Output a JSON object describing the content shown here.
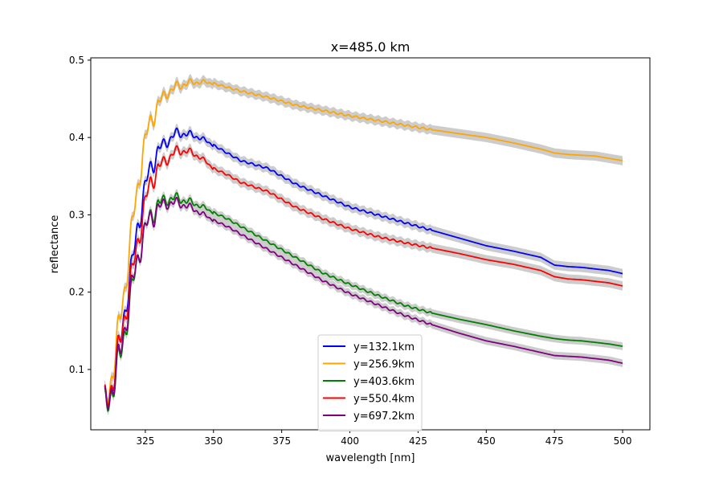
{
  "chart_data": {
    "type": "line",
    "title": "x=485.0 km",
    "xlabel": "wavelength [nm]",
    "ylabel": "reflectance",
    "xlim": [
      305,
      510
    ],
    "ylim": [
      0.022,
      0.503
    ],
    "xticks": [
      325,
      350,
      375,
      400,
      425,
      450,
      475,
      500
    ],
    "yticks": [
      0.1,
      0.2,
      0.3,
      0.4,
      0.5
    ],
    "grid": false,
    "legend_position": "lower-center",
    "uncertainty_band_color": "#cccccc",
    "series": [
      {
        "name": "y=132.1km",
        "color": "#0000ff",
        "band": 0.006,
        "points": [
          [
            310,
            0.05
          ],
          [
            312,
            0.07
          ],
          [
            314,
            0.1
          ],
          [
            316,
            0.14
          ],
          [
            318,
            0.19
          ],
          [
            320,
            0.23
          ],
          [
            322,
            0.28
          ],
          [
            324,
            0.32
          ],
          [
            326,
            0.35
          ],
          [
            328,
            0.37
          ],
          [
            330,
            0.385
          ],
          [
            333,
            0.395
          ],
          [
            336,
            0.405
          ],
          [
            340,
            0.405
          ],
          [
            345,
            0.4
          ],
          [
            350,
            0.39
          ],
          [
            355,
            0.38
          ],
          [
            360,
            0.37
          ],
          [
            370,
            0.36
          ],
          [
            380,
            0.34
          ],
          [
            390,
            0.325
          ],
          [
            400,
            0.31
          ],
          [
            410,
            0.3
          ],
          [
            420,
            0.29
          ],
          [
            430,
            0.28
          ],
          [
            440,
            0.27
          ],
          [
            450,
            0.26
          ],
          [
            460,
            0.253
          ],
          [
            470,
            0.245
          ],
          [
            475,
            0.235
          ],
          [
            480,
            0.233
          ],
          [
            485,
            0.232
          ],
          [
            490,
            0.23
          ],
          [
            495,
            0.228
          ],
          [
            500,
            0.224
          ]
        ]
      },
      {
        "name": "y=256.9km",
        "color": "#ffa500",
        "band": 0.006,
        "points": [
          [
            310,
            0.05
          ],
          [
            312,
            0.08
          ],
          [
            314,
            0.12
          ],
          [
            316,
            0.17
          ],
          [
            318,
            0.22
          ],
          [
            320,
            0.28
          ],
          [
            322,
            0.33
          ],
          [
            324,
            0.38
          ],
          [
            326,
            0.41
          ],
          [
            328,
            0.43
          ],
          [
            330,
            0.445
          ],
          [
            333,
            0.458
          ],
          [
            336,
            0.465
          ],
          [
            340,
            0.47
          ],
          [
            345,
            0.472
          ],
          [
            350,
            0.47
          ],
          [
            355,
            0.465
          ],
          [
            360,
            0.46
          ],
          [
            370,
            0.452
          ],
          [
            380,
            0.442
          ],
          [
            390,
            0.435
          ],
          [
            400,
            0.428
          ],
          [
            410,
            0.422
          ],
          [
            420,
            0.416
          ],
          [
            430,
            0.41
          ],
          [
            440,
            0.405
          ],
          [
            450,
            0.4
          ],
          [
            460,
            0.393
          ],
          [
            470,
            0.385
          ],
          [
            475,
            0.38
          ],
          [
            480,
            0.378
          ],
          [
            485,
            0.377
          ],
          [
            490,
            0.376
          ],
          [
            495,
            0.373
          ],
          [
            500,
            0.37
          ]
        ]
      },
      {
        "name": "y=403.6km",
        "color": "#008000",
        "band": 0.005,
        "points": [
          [
            310,
            0.048
          ],
          [
            312,
            0.065
          ],
          [
            314,
            0.09
          ],
          [
            316,
            0.12
          ],
          [
            318,
            0.16
          ],
          [
            320,
            0.2
          ],
          [
            322,
            0.24
          ],
          [
            324,
            0.27
          ],
          [
            326,
            0.29
          ],
          [
            328,
            0.305
          ],
          [
            330,
            0.315
          ],
          [
            333,
            0.32
          ],
          [
            336,
            0.322
          ],
          [
            340,
            0.318
          ],
          [
            345,
            0.312
          ],
          [
            350,
            0.303
          ],
          [
            355,
            0.295
          ],
          [
            360,
            0.285
          ],
          [
            370,
            0.265
          ],
          [
            380,
            0.245
          ],
          [
            390,
            0.225
          ],
          [
            400,
            0.21
          ],
          [
            410,
            0.196
          ],
          [
            420,
            0.183
          ],
          [
            430,
            0.173
          ],
          [
            440,
            0.165
          ],
          [
            450,
            0.158
          ],
          [
            460,
            0.15
          ],
          [
            470,
            0.143
          ],
          [
            475,
            0.14
          ],
          [
            480,
            0.138
          ],
          [
            485,
            0.137
          ],
          [
            490,
            0.135
          ],
          [
            495,
            0.133
          ],
          [
            500,
            0.13
          ]
        ]
      },
      {
        "name": "y=550.4km",
        "color": "#ff0000",
        "band": 0.006,
        "points": [
          [
            310,
            0.052
          ],
          [
            312,
            0.072
          ],
          [
            314,
            0.1
          ],
          [
            316,
            0.14
          ],
          [
            318,
            0.18
          ],
          [
            320,
            0.22
          ],
          [
            322,
            0.26
          ],
          [
            324,
            0.3
          ],
          [
            326,
            0.33
          ],
          [
            328,
            0.35
          ],
          [
            330,
            0.362
          ],
          [
            333,
            0.372
          ],
          [
            336,
            0.382
          ],
          [
            340,
            0.383
          ],
          [
            345,
            0.375
          ],
          [
            350,
            0.36
          ],
          [
            355,
            0.352
          ],
          [
            360,
            0.342
          ],
          [
            370,
            0.33
          ],
          [
            380,
            0.31
          ],
          [
            390,
            0.295
          ],
          [
            400,
            0.282
          ],
          [
            410,
            0.272
          ],
          [
            420,
            0.264
          ],
          [
            430,
            0.257
          ],
          [
            440,
            0.25
          ],
          [
            450,
            0.242
          ],
          [
            460,
            0.236
          ],
          [
            470,
            0.228
          ],
          [
            475,
            0.22
          ],
          [
            480,
            0.217
          ],
          [
            485,
            0.216
          ],
          [
            490,
            0.214
          ],
          [
            495,
            0.212
          ],
          [
            500,
            0.208
          ]
        ]
      },
      {
        "name": "y=697.2km",
        "color": "#800080",
        "band": 0.005,
        "points": [
          [
            310,
            0.05
          ],
          [
            312,
            0.068
          ],
          [
            314,
            0.093
          ],
          [
            316,
            0.125
          ],
          [
            318,
            0.165
          ],
          [
            320,
            0.205
          ],
          [
            322,
            0.24
          ],
          [
            324,
            0.27
          ],
          [
            326,
            0.29
          ],
          [
            328,
            0.3
          ],
          [
            330,
            0.31
          ],
          [
            333,
            0.315
          ],
          [
            336,
            0.316
          ],
          [
            340,
            0.312
          ],
          [
            345,
            0.303
          ],
          [
            350,
            0.293
          ],
          [
            355,
            0.285
          ],
          [
            360,
            0.275
          ],
          [
            370,
            0.255
          ],
          [
            380,
            0.235
          ],
          [
            390,
            0.215
          ],
          [
            400,
            0.198
          ],
          [
            410,
            0.184
          ],
          [
            420,
            0.17
          ],
          [
            430,
            0.158
          ],
          [
            440,
            0.147
          ],
          [
            450,
            0.137
          ],
          [
            460,
            0.13
          ],
          [
            470,
            0.122
          ],
          [
            475,
            0.118
          ],
          [
            480,
            0.117
          ],
          [
            485,
            0.116
          ],
          [
            490,
            0.114
          ],
          [
            495,
            0.112
          ],
          [
            500,
            0.108
          ]
        ]
      }
    ]
  }
}
